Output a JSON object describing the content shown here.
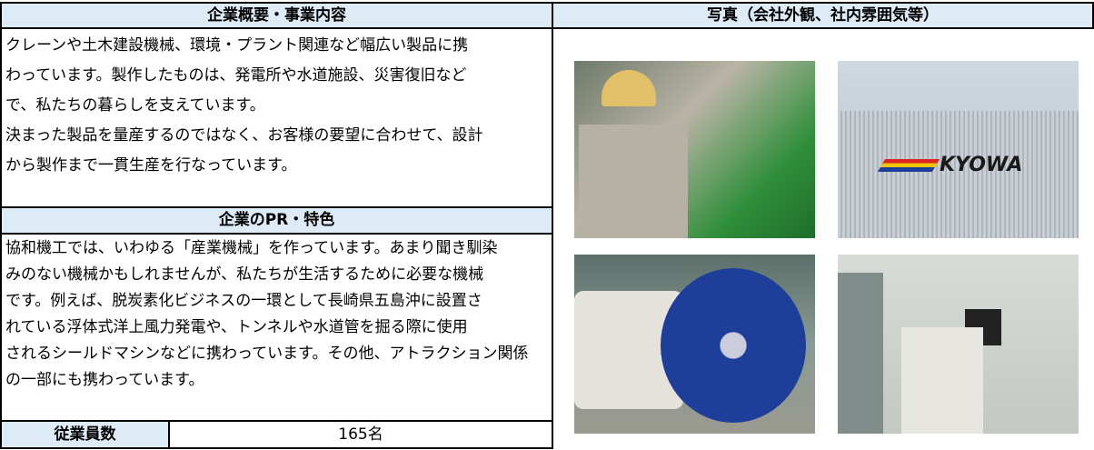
{
  "overview": {
    "title": "企業概要・事業内容",
    "lines": [
      "クレーンや土木建設機械、環境・プラント関連など幅広い製品に携",
      "わっています。製作したものは、発電所や水道施設、災害復旧など",
      "で、私たちの暮らしを支えています。",
      "決まった製品を量産するのではなく、お客様の要望に合わせて、設計",
      "から製作まで一貫生産を行なっています。"
    ]
  },
  "pr": {
    "title": "企業のPR・特色",
    "lines": [
      "協和機工では、いわゆる「産業機械」を作っています。あまり聞き馴染",
      "みのない機械かもしれませんが、私たちが生活するために必要な機械",
      "です。例えば、脱炭素化ビジネスの一環として長崎県五島沖に設置さ",
      "れている浮体式洋上風力発電や、トンネルや水道管を掘る際に使用",
      "されるシールドマシンなどに携わっています。その他、アトラクション関係",
      "の一部にも携わっています。"
    ]
  },
  "employees": {
    "label": "従業員数",
    "value": "165名"
  },
  "photos": {
    "title": "写真（会社外観、社内雰囲気等）",
    "exterior_sign": "KYOWA"
  }
}
